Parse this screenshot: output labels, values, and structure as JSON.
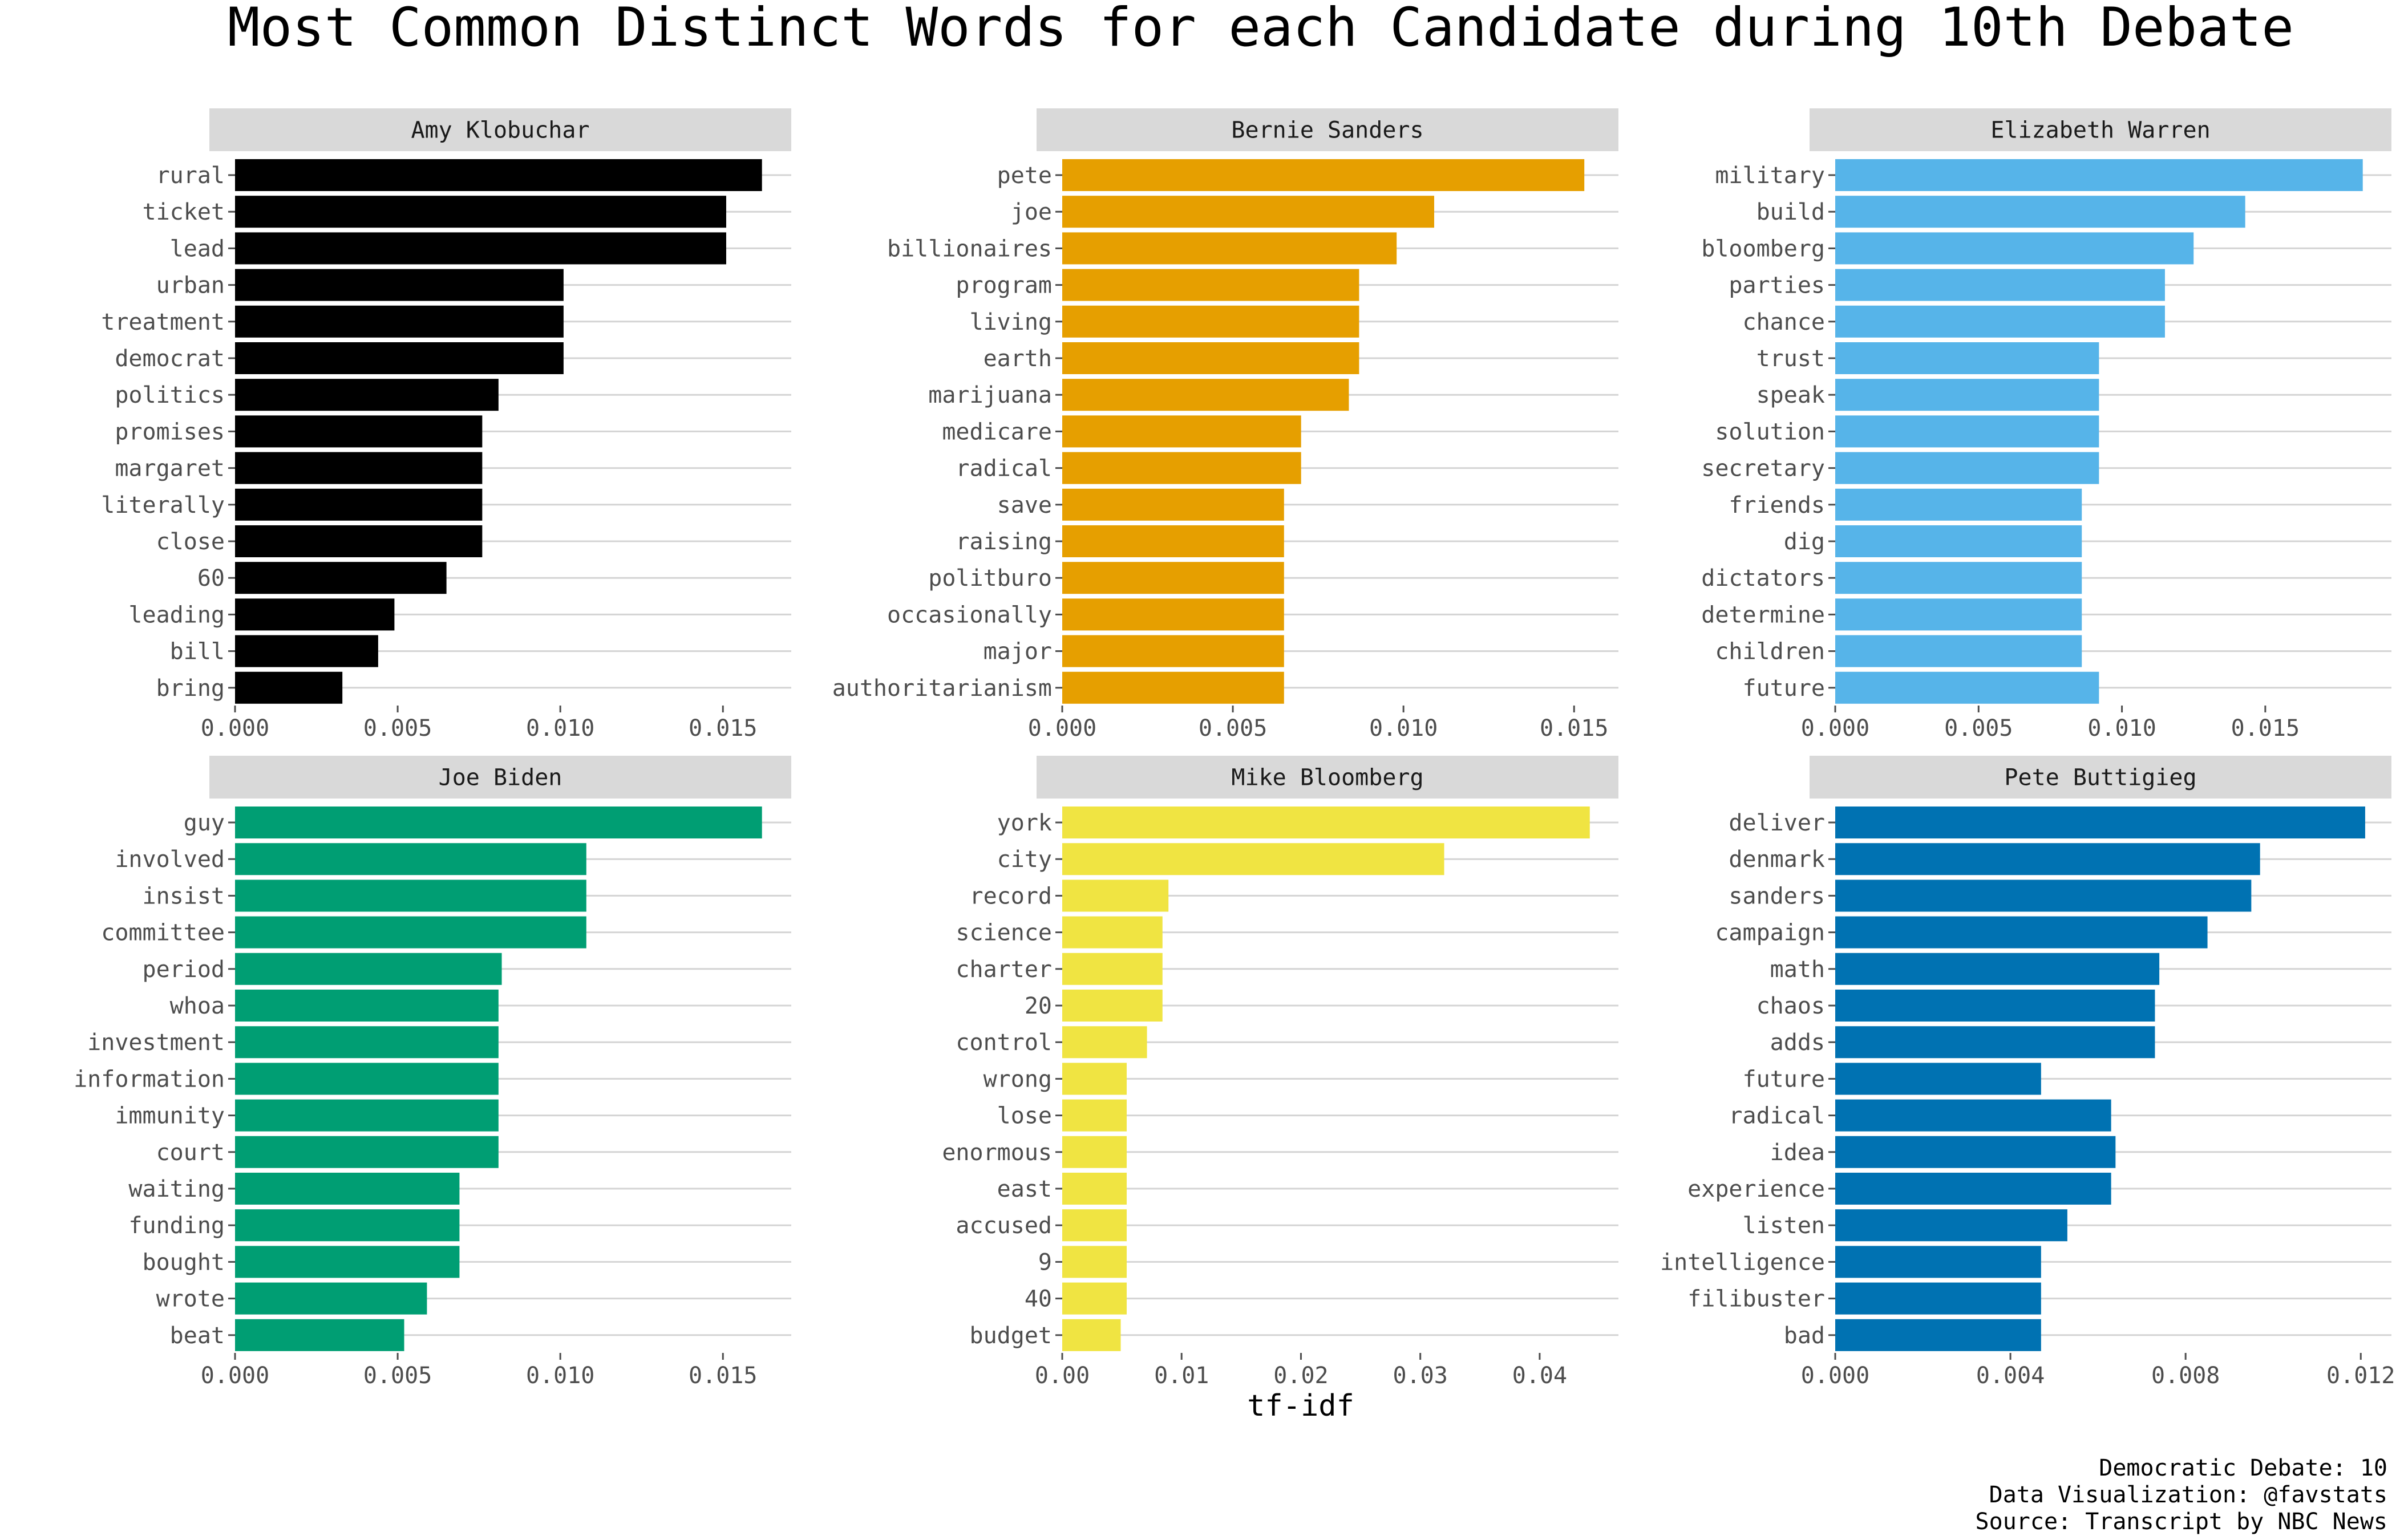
{
  "chart_data": {
    "type": "bar",
    "orientation": "horizontal",
    "title": "Most Common Distinct Words for each Candidate during 10th Debate",
    "xlabel": "tf-idf",
    "caption": [
      "Democratic Debate: 10",
      "Data Visualization: @favstats",
      "Source: Transcript by NBC News"
    ],
    "grid": true,
    "legend": "none",
    "panels": [
      {
        "name": "Amy Klobuchar",
        "color": "#000000",
        "xlim": [
          0,
          0.0171
        ],
        "ticks": [
          0,
          0.005,
          0.01,
          0.015
        ],
        "tick_labels": [
          "0.000",
          "0.005",
          "0.010",
          "0.015"
        ],
        "categories": [
          "rural",
          "ticket",
          "lead",
          "urban",
          "treatment",
          "democrat",
          "politics",
          "promises",
          "margaret",
          "literally",
          "close",
          "60",
          "leading",
          "bill",
          "bring"
        ],
        "values": [
          0.0162,
          0.0151,
          0.0151,
          0.0101,
          0.0101,
          0.0101,
          0.0081,
          0.0076,
          0.0076,
          0.0076,
          0.0076,
          0.0065,
          0.0049,
          0.0044,
          0.0033
        ]
      },
      {
        "name": "Bernie Sanders",
        "color": "#E69F00",
        "xlim": [
          0,
          0.0163
        ],
        "ticks": [
          0,
          0.005,
          0.01,
          0.015
        ],
        "tick_labels": [
          "0.000",
          "0.005",
          "0.010",
          "0.015"
        ],
        "categories": [
          "pete",
          "joe",
          "billionaires",
          "program",
          "living",
          "earth",
          "marijuana",
          "medicare",
          "radical",
          "save",
          "raising",
          "politburo",
          "occasionally",
          "major",
          "authoritarianism"
        ],
        "values": [
          0.0153,
          0.0109,
          0.0098,
          0.0087,
          0.0087,
          0.0087,
          0.0084,
          0.007,
          0.007,
          0.0065,
          0.0065,
          0.0065,
          0.0065,
          0.0065,
          0.0065
        ]
      },
      {
        "name": "Elizabeth Warren",
        "color": "#56B4E9",
        "xlim": [
          0,
          0.0194
        ],
        "ticks": [
          0,
          0.005,
          0.01,
          0.015
        ],
        "tick_labels": [
          "0.000",
          "0.005",
          "0.010",
          "0.015"
        ],
        "categories": [
          "military",
          "build",
          "bloomberg",
          "parties",
          "chance",
          "trust",
          "speak",
          "solution",
          "secretary",
          "friends",
          "dig",
          "dictators",
          "determine",
          "children",
          "future"
        ],
        "values": [
          0.0184,
          0.0143,
          0.0125,
          0.0115,
          0.0115,
          0.0092,
          0.0092,
          0.0092,
          0.0092,
          0.0086,
          0.0086,
          0.0086,
          0.0086,
          0.0086,
          0.0092
        ]
      },
      {
        "name": "Joe Biden",
        "color": "#009E73",
        "xlim": [
          0,
          0.0171
        ],
        "ticks": [
          0,
          0.005,
          0.01,
          0.015
        ],
        "tick_labels": [
          "0.000",
          "0.005",
          "0.010",
          "0.015"
        ],
        "categories": [
          "guy",
          "involved",
          "insist",
          "committee",
          "period",
          "whoa",
          "investment",
          "information",
          "immunity",
          "court",
          "waiting",
          "funding",
          "bought",
          "wrote",
          "beat"
        ],
        "values": [
          0.0162,
          0.0108,
          0.0108,
          0.0108,
          0.0082,
          0.0081,
          0.0081,
          0.0081,
          0.0081,
          0.0081,
          0.0069,
          0.0069,
          0.0069,
          0.0059,
          0.0052
        ]
      },
      {
        "name": "Mike Bloomberg",
        "color": "#F0E442",
        "xlim": [
          0,
          0.0466
        ],
        "ticks": [
          0,
          0.01,
          0.02,
          0.03,
          0.04
        ],
        "tick_labels": [
          "0.00",
          "0.01",
          "0.02",
          "0.03",
          "0.04"
        ],
        "categories": [
          "york",
          "city",
          "record",
          "science",
          "charter",
          "20",
          "control",
          "wrong",
          "lose",
          "enormous",
          "east",
          "accused",
          "9",
          "40",
          "budget"
        ],
        "values": [
          0.0442,
          0.032,
          0.0089,
          0.0084,
          0.0084,
          0.0084,
          0.0071,
          0.0054,
          0.0054,
          0.0054,
          0.0054,
          0.0054,
          0.0054,
          0.0054,
          0.0049
        ]
      },
      {
        "name": "Pete Buttigieg",
        "color": "#0072B2",
        "xlim": [
          0,
          0.0127
        ],
        "ticks": [
          0,
          0.004,
          0.008,
          0.012
        ],
        "tick_labels": [
          "0.000",
          "0.004",
          "0.008",
          "0.012"
        ],
        "categories": [
          "deliver",
          "denmark",
          "sanders",
          "campaign",
          "math",
          "chaos",
          "adds",
          "future",
          "radical",
          "idea",
          "experience",
          "listen",
          "intelligence",
          "filibuster",
          "bad"
        ],
        "values": [
          0.0121,
          0.0097,
          0.0095,
          0.0085,
          0.0074,
          0.0073,
          0.0073,
          0.0047,
          0.0063,
          0.0064,
          0.0063,
          0.0053,
          0.0047,
          0.0047,
          0.0047
        ]
      }
    ]
  }
}
